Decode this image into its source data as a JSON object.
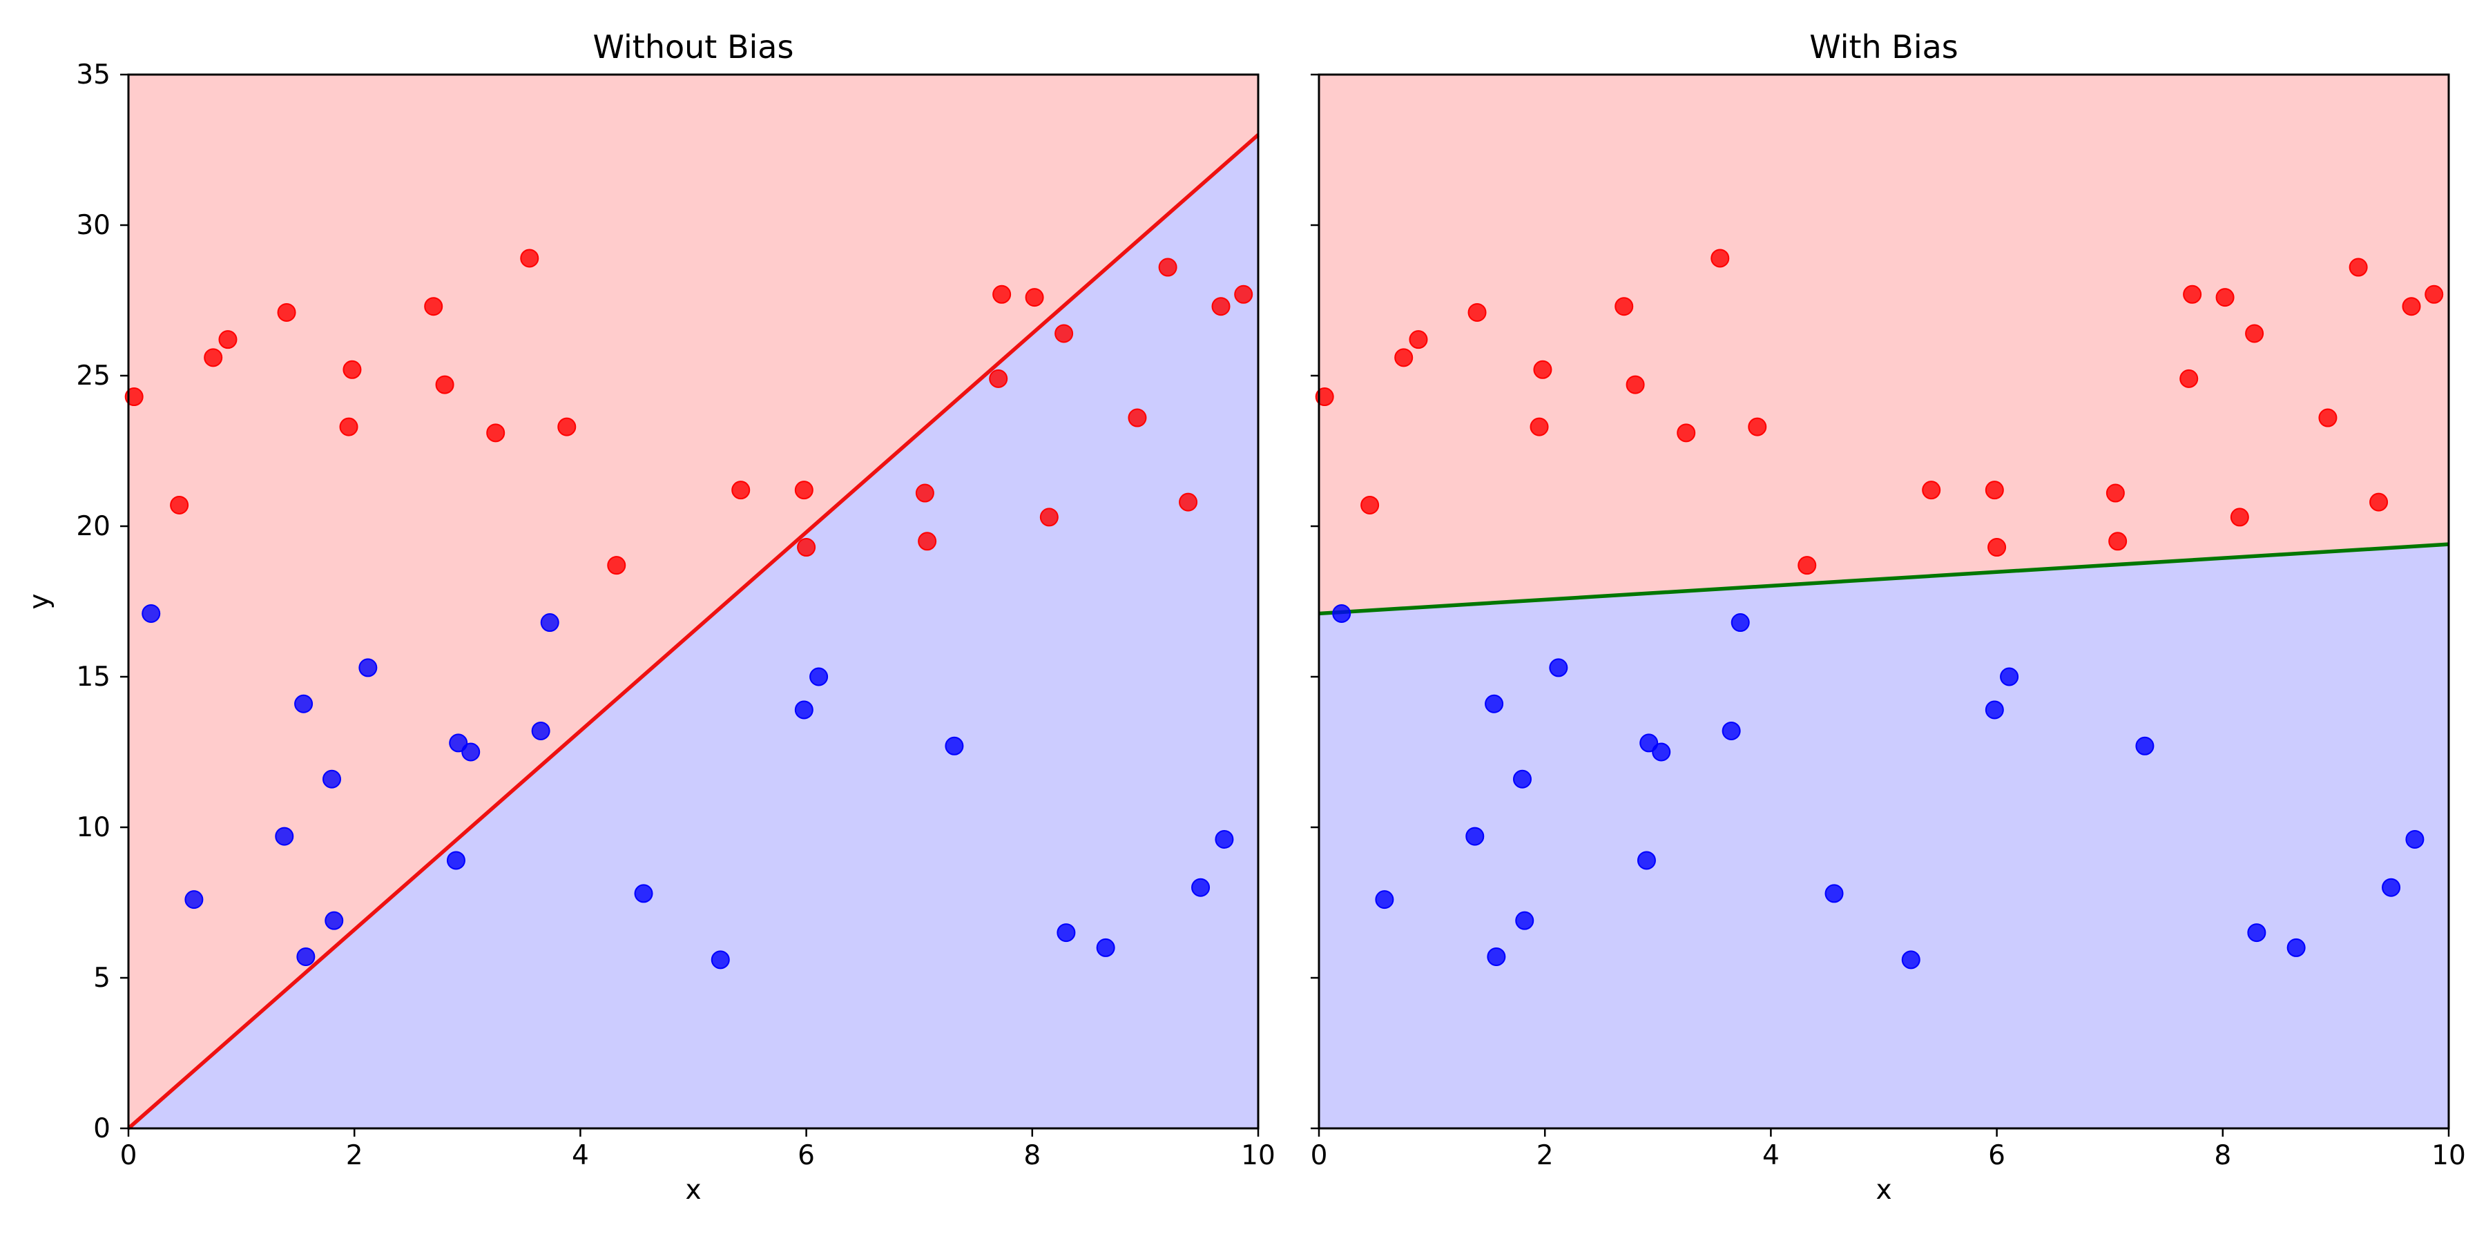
{
  "chart_data": [
    {
      "type": "scatter",
      "title": "Without Bias",
      "xlabel": "x",
      "ylabel": "y",
      "xlim": [
        0,
        10
      ],
      "ylim": [
        0,
        35
      ],
      "xticks": [
        "0",
        "2",
        "4",
        "6",
        "8",
        "10"
      ],
      "yticks": [
        "0",
        "5",
        "10",
        "15",
        "20",
        "25",
        "30",
        "35"
      ],
      "grid": false,
      "regions": {
        "above_color": "#ffcccc",
        "below_color": "#ccccff"
      },
      "boundary": {
        "color": "#ee1111",
        "points": [
          [
            0,
            0
          ],
          [
            10,
            33
          ]
        ]
      },
      "series": [
        {
          "color": "#ff0000",
          "points": [
            [
              0.05,
              24.3
            ],
            [
              0.45,
              20.7
            ],
            [
              0.75,
              25.6
            ],
            [
              0.88,
              26.2
            ],
            [
              1.4,
              27.1
            ],
            [
              1.95,
              23.3
            ],
            [
              1.98,
              25.2
            ],
            [
              2.7,
              27.3
            ],
            [
              2.8,
              24.7
            ],
            [
              3.25,
              23.1
            ],
            [
              3.55,
              28.9
            ],
            [
              3.88,
              23.3
            ],
            [
              4.32,
              18.7
            ],
            [
              5.42,
              21.2
            ],
            [
              5.98,
              21.2
            ],
            [
              6.0,
              19.3
            ],
            [
              7.05,
              21.1
            ],
            [
              7.07,
              19.5
            ],
            [
              7.7,
              24.9
            ],
            [
              7.73,
              27.7
            ],
            [
              8.02,
              27.6
            ],
            [
              8.15,
              20.3
            ],
            [
              8.28,
              26.4
            ],
            [
              8.93,
              23.6
            ],
            [
              9.2,
              28.6
            ],
            [
              9.38,
              20.8
            ],
            [
              9.67,
              27.3
            ],
            [
              9.87,
              27.7
            ]
          ]
        },
        {
          "color": "#0000ff",
          "points": [
            [
              0.2,
              17.1
            ],
            [
              0.58,
              7.6
            ],
            [
              1.38,
              9.7
            ],
            [
              1.55,
              14.1
            ],
            [
              1.57,
              5.7
            ],
            [
              1.8,
              11.6
            ],
            [
              1.82,
              6.9
            ],
            [
              2.12,
              15.3
            ],
            [
              2.9,
              8.9
            ],
            [
              2.92,
              12.8
            ],
            [
              3.03,
              12.5
            ],
            [
              3.65,
              13.2
            ],
            [
              3.73,
              16.8
            ],
            [
              4.56,
              7.8
            ],
            [
              5.24,
              5.6
            ],
            [
              5.98,
              13.9
            ],
            [
              6.11,
              15.0
            ],
            [
              7.31,
              12.7
            ],
            [
              8.3,
              6.5
            ],
            [
              8.65,
              6.0
            ],
            [
              9.49,
              8.0
            ],
            [
              9.7,
              9.6
            ]
          ]
        }
      ]
    },
    {
      "type": "scatter",
      "title": "With Bias",
      "xlabel": "x",
      "ylabel": "",
      "xlim": [
        0,
        10
      ],
      "ylim": [
        0,
        35
      ],
      "xticks": [
        "0",
        "2",
        "4",
        "6",
        "8",
        "10"
      ],
      "yticks": [],
      "grid": false,
      "regions": {
        "above_color": "#ffcccc",
        "below_color": "#ccccff"
      },
      "boundary": {
        "color": "#007700",
        "points": [
          [
            0,
            17.1
          ],
          [
            10,
            19.4
          ]
        ]
      },
      "series": [
        {
          "color": "#ff0000",
          "points": [
            [
              0.05,
              24.3
            ],
            [
              0.45,
              20.7
            ],
            [
              0.75,
              25.6
            ],
            [
              0.88,
              26.2
            ],
            [
              1.4,
              27.1
            ],
            [
              1.95,
              23.3
            ],
            [
              1.98,
              25.2
            ],
            [
              2.7,
              27.3
            ],
            [
              2.8,
              24.7
            ],
            [
              3.25,
              23.1
            ],
            [
              3.55,
              28.9
            ],
            [
              3.88,
              23.3
            ],
            [
              4.32,
              18.7
            ],
            [
              5.42,
              21.2
            ],
            [
              5.98,
              21.2
            ],
            [
              6.0,
              19.3
            ],
            [
              7.05,
              21.1
            ],
            [
              7.07,
              19.5
            ],
            [
              7.7,
              24.9
            ],
            [
              7.73,
              27.7
            ],
            [
              8.02,
              27.6
            ],
            [
              8.15,
              20.3
            ],
            [
              8.28,
              26.4
            ],
            [
              8.93,
              23.6
            ],
            [
              9.2,
              28.6
            ],
            [
              9.38,
              20.8
            ],
            [
              9.67,
              27.3
            ],
            [
              9.87,
              27.7
            ]
          ]
        },
        {
          "color": "#0000ff",
          "points": [
            [
              0.2,
              17.1
            ],
            [
              0.58,
              7.6
            ],
            [
              1.38,
              9.7
            ],
            [
              1.55,
              14.1
            ],
            [
              1.57,
              5.7
            ],
            [
              1.8,
              11.6
            ],
            [
              1.82,
              6.9
            ],
            [
              2.12,
              15.3
            ],
            [
              2.9,
              8.9
            ],
            [
              2.92,
              12.8
            ],
            [
              3.03,
              12.5
            ],
            [
              3.65,
              13.2
            ],
            [
              3.73,
              16.8
            ],
            [
              4.56,
              7.8
            ],
            [
              5.24,
              5.6
            ],
            [
              5.98,
              13.9
            ],
            [
              6.11,
              15.0
            ],
            [
              7.31,
              12.7
            ],
            [
              8.3,
              6.5
            ],
            [
              8.65,
              6.0
            ],
            [
              9.49,
              8.0
            ],
            [
              9.7,
              9.6
            ]
          ]
        }
      ]
    }
  ]
}
